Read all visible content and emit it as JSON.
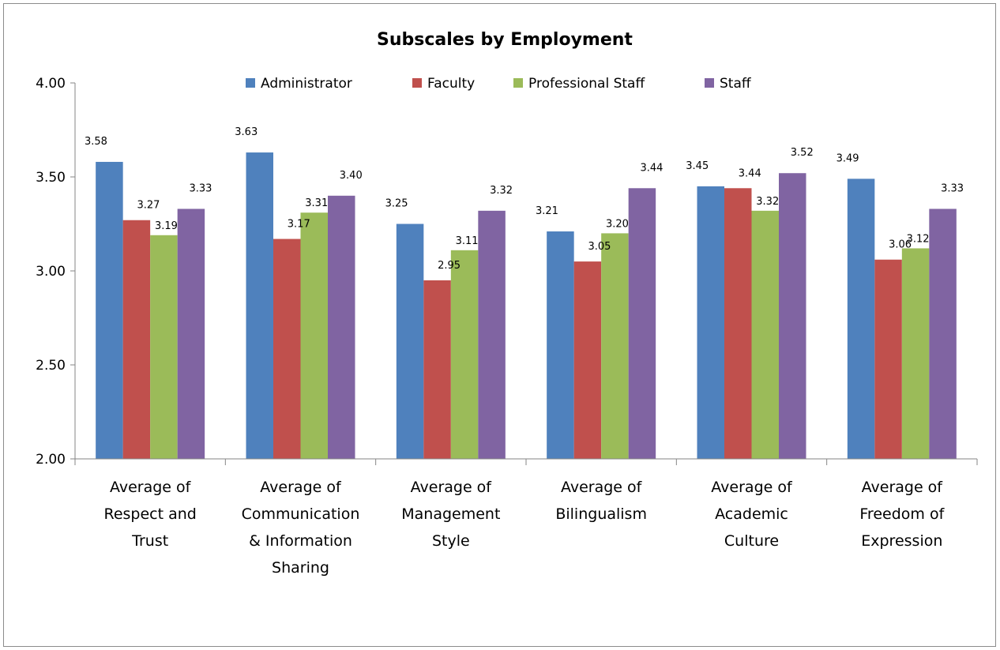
{
  "chart_data": {
    "type": "bar",
    "title": "Subscales by Employment",
    "xlabel": "",
    "ylabel": "",
    "ylim": [
      2.0,
      4.0
    ],
    "yticks": [
      "2.00",
      "2.50",
      "3.00",
      "3.50",
      "4.00"
    ],
    "ytick_values": [
      2.0,
      2.5,
      3.0,
      3.5,
      4.0
    ],
    "grid": false,
    "legend_position": "top",
    "categories": [
      [
        "Average of",
        "Respect and",
        "Trust"
      ],
      [
        "Average of",
        "Communication",
        "& Information",
        "Sharing"
      ],
      [
        "Average of",
        "Management",
        "Style"
      ],
      [
        "Average of",
        "Bilingualism"
      ],
      [
        "Average of",
        "Academic",
        "Culture"
      ],
      [
        "Average of",
        "Freedom of",
        "Expression"
      ]
    ],
    "series": [
      {
        "name": "Administrator",
        "color": "#4f81bd",
        "values": [
          3.58,
          3.63,
          3.25,
          3.21,
          3.45,
          3.49
        ]
      },
      {
        "name": "Faculty",
        "color": "#c0504d",
        "values": [
          3.27,
          3.17,
          2.95,
          3.05,
          3.44,
          3.06
        ]
      },
      {
        "name": "Professional Staff",
        "color": "#9bbb59",
        "values": [
          3.19,
          3.31,
          3.11,
          3.2,
          3.32,
          3.12
        ]
      },
      {
        "name": "Staff",
        "color": "#8064a2",
        "values": [
          3.33,
          3.4,
          3.32,
          3.44,
          3.52,
          3.33
        ]
      }
    ]
  }
}
